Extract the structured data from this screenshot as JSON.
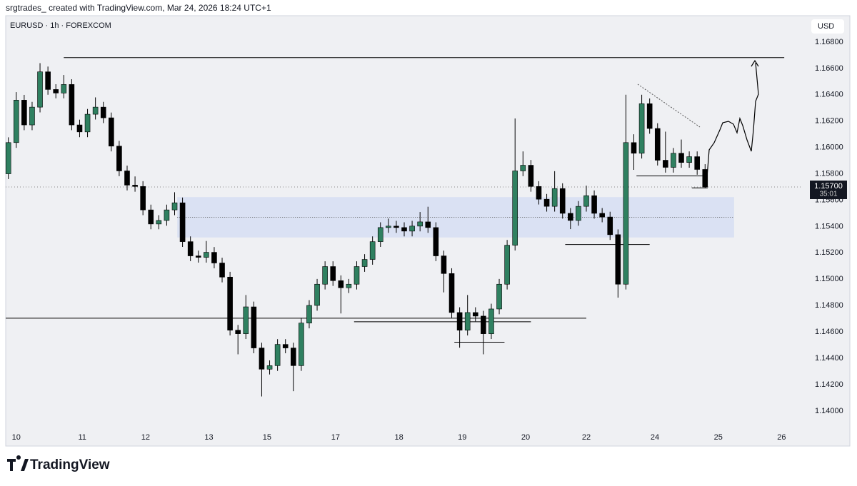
{
  "header": "srgtrades_ created with TradingView.com, Mar 24, 2026 18:24 UTC+1",
  "brand": "TradingView",
  "chart_data": {
    "type": "candlestick",
    "title": "EURUSD · 1h · FOREXCOM",
    "currency": "USD",
    "up_color": "#2f8060",
    "down_color": "#000000",
    "grid": false,
    "xlim": [
      0,
      302
    ],
    "ylim": [
      1.1388,
      1.17
    ],
    "xticks": [
      {
        "value": 4,
        "label": "10"
      },
      {
        "value": 29,
        "label": "11"
      },
      {
        "value": 53,
        "label": "12"
      },
      {
        "value": 77,
        "label": "13"
      },
      {
        "value": 99,
        "label": "15"
      },
      {
        "value": 125,
        "label": "17"
      },
      {
        "value": 149,
        "label": "18"
      },
      {
        "value": 173,
        "label": "19"
      },
      {
        "value": 197,
        "label": "20"
      },
      {
        "value": 220,
        "label": "22"
      },
      {
        "value": 246,
        "label": "24"
      },
      {
        "value": 270,
        "label": "25"
      },
      {
        "value": 294,
        "label": "26"
      }
    ],
    "yticks": [
      {
        "value": 1.14,
        "label": "1.14000"
      },
      {
        "value": 1.142,
        "label": "1.14200"
      },
      {
        "value": 1.144,
        "label": "1.14400"
      },
      {
        "value": 1.146,
        "label": "1.14600"
      },
      {
        "value": 1.148,
        "label": "1.14800"
      },
      {
        "value": 1.15,
        "label": "1.15000"
      },
      {
        "value": 1.152,
        "label": "1.15200"
      },
      {
        "value": 1.154,
        "label": "1.15400"
      },
      {
        "value": 1.156,
        "label": "1.15600"
      },
      {
        "value": 1.158,
        "label": "1.15800"
      },
      {
        "value": 1.16,
        "label": "1.16000"
      },
      {
        "value": 1.162,
        "label": "1.16200"
      },
      {
        "value": 1.164,
        "label": "1.16400"
      },
      {
        "value": 1.166,
        "label": "1.16600"
      },
      {
        "value": 1.168,
        "label": "1.16800"
      }
    ],
    "candles": {
      "x": [
        1,
        4,
        7,
        10,
        13,
        16,
        19,
        22,
        25,
        28,
        31,
        34,
        37,
        40,
        43,
        46,
        49,
        52,
        55,
        58,
        61,
        64,
        67,
        70,
        73,
        76,
        79,
        82,
        85,
        88,
        91,
        94,
        97,
        100,
        103,
        106,
        109,
        112,
        115,
        118,
        121,
        124,
        127,
        130,
        133,
        136,
        139,
        142,
        145,
        148,
        151,
        154,
        157,
        160,
        163,
        166,
        169,
        172,
        175,
        178,
        181,
        184,
        187,
        190,
        193,
        196,
        199,
        202,
        205,
        208,
        211,
        214,
        217,
        220,
        223,
        226,
        229,
        232,
        235,
        238,
        241,
        244,
        247,
        250,
        253,
        256,
        259,
        262,
        265
      ],
      "open": [
        1.158,
        1.16037,
        1.16359,
        1.16171,
        1.16306,
        1.16574,
        1.1644,
        1.16413,
        1.16478,
        1.16171,
        1.16118,
        1.16252,
        1.16306,
        1.16225,
        1.1601,
        1.15822,
        1.15714,
        1.15704,
        1.15526,
        1.15419,
        1.15446,
        1.15526,
        1.1558,
        1.15285,
        1.15177,
        1.15166,
        1.15204,
        1.15123,
        1.15016,
        1.14613,
        1.14586,
        1.1479,
        1.14478,
        1.14317,
        1.14344,
        1.14505,
        1.14478,
        1.14344,
        1.14667,
        1.14801,
        1.14962,
        1.15096,
        1.14989,
        1.14935,
        1.14962,
        1.15096,
        1.1515,
        1.15285,
        1.15392,
        1.15403,
        1.15392,
        1.15365,
        1.15403,
        1.15435,
        1.15392,
        1.15177,
        1.15043,
        1.14747,
        1.14613,
        1.14747,
        1.1472,
        1.14586,
        1.14774,
        1.14962,
        1.15258,
        1.15822,
        1.15865,
        1.15704,
        1.15607,
        1.15553,
        1.15688,
        1.155,
        1.15446,
        1.15553,
        1.15634,
        1.155,
        1.15472,
        1.15338,
        1.14962,
        1.16037,
        1.15956,
        1.16332,
        1.16144,
        1.15903,
        1.15849,
        1.15956,
        1.15886,
        1.1593,
        1.15833
      ],
      "high": [
        1.16077,
        1.1642,
        1.16399,
        1.16346,
        1.1664,
        1.16614,
        1.1648,
        1.1655,
        1.16518,
        1.16211,
        1.16292,
        1.1638,
        1.16346,
        1.16265,
        1.1605,
        1.15862,
        1.1578,
        1.15744,
        1.15566,
        1.15486,
        1.15566,
        1.1566,
        1.1562,
        1.15325,
        1.15217,
        1.1529,
        1.15244,
        1.15163,
        1.15056,
        1.14653,
        1.1488,
        1.1483,
        1.14518,
        1.14384,
        1.14545,
        1.14545,
        1.14518,
        1.14707,
        1.14841,
        1.15002,
        1.15136,
        1.15136,
        1.15029,
        1.15002,
        1.15136,
        1.1519,
        1.15325,
        1.15432,
        1.1546,
        1.15443,
        1.15432,
        1.15443,
        1.1551,
        1.1555,
        1.15432,
        1.15217,
        1.15083,
        1.14787,
        1.1488,
        1.14787,
        1.1476,
        1.14814,
        1.15002,
        1.15298,
        1.1622,
        1.1597,
        1.15905,
        1.15744,
        1.15647,
        1.1582,
        1.15728,
        1.1554,
        1.15593,
        1.1571,
        1.15674,
        1.1554,
        1.15512,
        1.15378,
        1.164,
        1.161,
        1.164,
        1.16372,
        1.16184,
        1.1612,
        1.15996,
        1.1606,
        1.1597,
        1.1597,
        1.15873
      ],
      "low": [
        1.1576,
        1.15997,
        1.16131,
        1.16131,
        1.16266,
        1.164,
        1.16373,
        1.16373,
        1.16131,
        1.16078,
        1.16078,
        1.16212,
        1.16185,
        1.1597,
        1.15782,
        1.15674,
        1.15664,
        1.15486,
        1.15379,
        1.15379,
        1.15406,
        1.15486,
        1.15245,
        1.15137,
        1.15126,
        1.15126,
        1.15083,
        1.14976,
        1.14573,
        1.1443,
        1.14546,
        1.14438,
        1.1411,
        1.14277,
        1.14304,
        1.14438,
        1.1415,
        1.14304,
        1.14627,
        1.14761,
        1.14922,
        1.14949,
        1.1474,
        1.14895,
        1.14922,
        1.15056,
        1.1511,
        1.15245,
        1.15352,
        1.15352,
        1.15325,
        1.15325,
        1.15363,
        1.15352,
        1.15137,
        1.149,
        1.14707,
        1.1448,
        1.14573,
        1.1468,
        1.1443,
        1.14546,
        1.14734,
        1.14922,
        1.15218,
        1.15782,
        1.15664,
        1.15567,
        1.15513,
        1.15513,
        1.1546,
        1.1538,
        1.15406,
        1.15513,
        1.1546,
        1.15432,
        1.15298,
        1.1486,
        1.14922,
        1.1583,
        1.15916,
        1.16104,
        1.15863,
        1.15809,
        1.15809,
        1.15846,
        1.15846,
        1.15793,
        1.1569
      ],
      "close": [
        1.16037,
        1.16359,
        1.16171,
        1.16306,
        1.16574,
        1.1644,
        1.16413,
        1.16478,
        1.16171,
        1.16118,
        1.16252,
        1.16306,
        1.16225,
        1.1601,
        1.15822,
        1.15714,
        1.15704,
        1.15526,
        1.15419,
        1.15446,
        1.15526,
        1.1558,
        1.15285,
        1.15177,
        1.15166,
        1.15204,
        1.15123,
        1.15016,
        1.14613,
        1.14586,
        1.1479,
        1.14478,
        1.14317,
        1.14344,
        1.14505,
        1.14478,
        1.14344,
        1.14667,
        1.14801,
        1.14962,
        1.15096,
        1.14989,
        1.14935,
        1.14962,
        1.15096,
        1.1515,
        1.15285,
        1.15392,
        1.15403,
        1.15392,
        1.15365,
        1.15403,
        1.15435,
        1.15392,
        1.15177,
        1.15043,
        1.14747,
        1.14613,
        1.14747,
        1.1472,
        1.14586,
        1.14774,
        1.14962,
        1.15258,
        1.15822,
        1.15865,
        1.15704,
        1.15607,
        1.15553,
        1.15688,
        1.155,
        1.15446,
        1.15553,
        1.15634,
        1.155,
        1.15472,
        1.15338,
        1.14962,
        1.16037,
        1.15956,
        1.16332,
        1.16144,
        1.15903,
        1.15849,
        1.15956,
        1.15886,
        1.1593,
        1.15833,
        1.157
      ]
    },
    "zone": {
      "low": 1.15317,
      "high": 1.15623,
      "mid": 1.1547,
      "from": 65,
      "to": 276,
      "color": "#d6def2"
    },
    "levels": [
      {
        "price": 1.16682,
        "from": 22,
        "to": 295
      },
      {
        "price": 1.14704,
        "from": 0,
        "to": 220
      },
      {
        "price": 1.14677,
        "from": 132,
        "to": 199
      },
      {
        "price": 1.14522,
        "from": 170,
        "to": 189
      },
      {
        "price": 1.15263,
        "from": 212,
        "to": 244
      },
      {
        "price": 1.15784,
        "from": 239,
        "to": 264
      },
      {
        "price": 1.15693,
        "from": 260,
        "to": 266
      }
    ],
    "last_price": {
      "value": 1.157,
      "label": "1.15700"
    },
    "countdown": "35:01"
  }
}
